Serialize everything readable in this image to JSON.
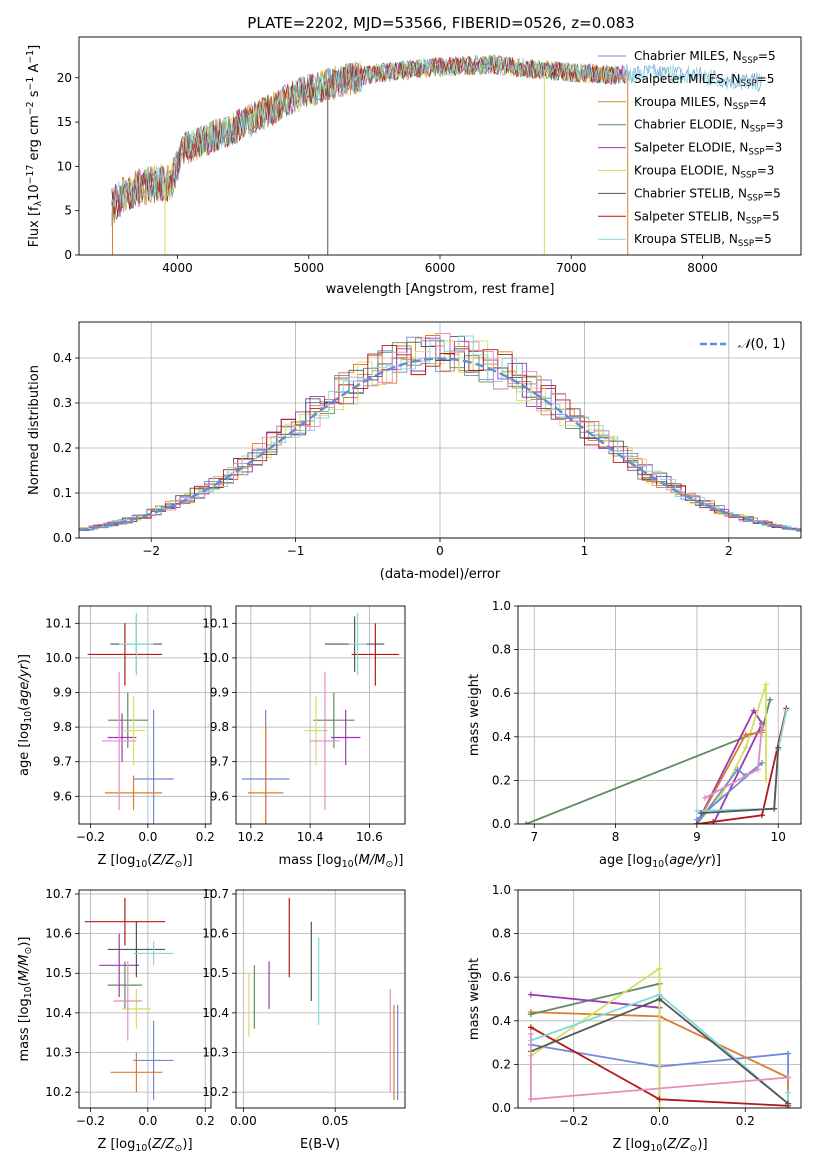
{
  "title": "PLATE=2202, MJD=53566, FIBERID=0526, z=0.083",
  "colors": {
    "chabrier_miles": "#6f8bd8",
    "salpeter_miles": "#e07d2a",
    "kroupa_miles": "#cc8a3a",
    "chabrier_elodie": "#5f8c63",
    "salpeter_elodie": "#9a3ab3",
    "kroupa_elodie": "#d4e060",
    "chabrier_stelib": "#555555",
    "salpeter_stelib": "#b41818",
    "kroupa_stelib": "#7fdada",
    "pink": "#e38fbf",
    "gauss": "#5b8fd8"
  },
  "chart_data": [
    {
      "id": "spectrum",
      "type": "line",
      "xlabel": "wavelength [Angstrom, rest frame]",
      "ylabel": "Flux [f_λ 10^-17 erg cm^-2 s^-1 A^-1]",
      "xlim": [
        3250,
        8750
      ],
      "ylim": [
        0,
        24.6
      ],
      "xticks": [
        4000,
        5000,
        6000,
        7000,
        8000
      ],
      "yticks": [
        0,
        5,
        10,
        15,
        20
      ],
      "legend_position": "right",
      "series": [
        {
          "name": "Chabrier MILES, N_SSP=5",
          "color": "#6f8bd8"
        },
        {
          "name": "Salpeter MILES, N_SSP=5",
          "color": "#e07d2a"
        },
        {
          "name": "Kroupa MILES, N_SSP=4",
          "color": "#cc8a3a"
        },
        {
          "name": "Chabrier ELODIE, N_SSP=3",
          "color": "#5f8c63"
        },
        {
          "name": "Salpeter ELODIE, N_SSP=3",
          "color": "#9a3ab3"
        },
        {
          "name": "Kroupa ELODIE, N_SSP=3",
          "color": "#d4e060"
        },
        {
          "name": "Chabrier STELIB, N_SSP=5",
          "color": "#555555"
        },
        {
          "name": "Salpeter STELIB, N_SSP=5",
          "color": "#b41818"
        },
        {
          "name": "Kroupa STELIB, N_SSP=5",
          "color": "#7fdada"
        }
      ],
      "continuum": {
        "x": [
          3500,
          3600,
          3800,
          3950,
          4050,
          4300,
          4600,
          4900,
          5200,
          5500,
          5800,
          6100,
          6400,
          6700,
          7000,
          7300,
          7500,
          7700,
          8000,
          8200,
          8400
        ],
        "y": [
          5.5,
          7.0,
          8.0,
          8.2,
          12.0,
          13.5,
          15.5,
          18.0,
          19.5,
          20.5,
          21.0,
          21.3,
          21.5,
          21.0,
          20.6,
          20.3,
          20.5,
          20.5,
          20.2,
          19.8,
          19.5
        ]
      }
    },
    {
      "id": "residuals",
      "type": "line",
      "xlabel": "(data-model)/error",
      "ylabel": "Normed distribution",
      "xlim": [
        -2.5,
        2.5
      ],
      "ylim": [
        0,
        0.48
      ],
      "xticks": [
        -2,
        -1,
        0,
        1,
        2
      ],
      "yticks": [
        0.0,
        0.1,
        0.2,
        0.3,
        0.4
      ],
      "grid": true,
      "legend": "𝒩(0,1)",
      "legend_position": "top-right"
    },
    {
      "id": "age_vs_Z",
      "type": "scatter",
      "xlabel": "Z [log10(Z/Z⊙)]",
      "ylabel": "age [log10(age/yr)]",
      "xlim": [
        -0.24,
        0.22
      ],
      "ylim": [
        9.52,
        10.15
      ],
      "xticks": [
        -0.2,
        0.0,
        0.2
      ],
      "yticks": [
        9.6,
        9.7,
        9.8,
        9.9,
        10.0,
        10.1
      ],
      "grid": true
    },
    {
      "id": "age_vs_mass",
      "type": "scatter",
      "xlabel": "mass [log10(M/M⊙)]",
      "ylim": [
        9.52,
        10.15
      ],
      "xlim": [
        10.15,
        10.72
      ],
      "xticks": [
        10.2,
        10.4,
        10.6
      ],
      "yticks": [
        9.6,
        9.7,
        9.8,
        9.9,
        10.0,
        10.1
      ],
      "grid": true
    },
    {
      "id": "weight_vs_age",
      "type": "line",
      "xlabel": "age [log10(age/yr)]",
      "ylabel": "mass weight",
      "xlim": [
        6.8,
        10.28
      ],
      "ylim": [
        0,
        1
      ],
      "xticks": [
        7,
        8,
        9,
        10
      ],
      "yticks": [
        0.0,
        0.2,
        0.4,
        0.6,
        0.8,
        1.0
      ],
      "grid": true
    },
    {
      "id": "mass_vs_Z",
      "type": "scatter",
      "xlabel": "Z [log10(Z/Z⊙)]",
      "ylabel": "mass [log10(M/M⊙)]",
      "xlim": [
        -0.24,
        0.22
      ],
      "ylim": [
        10.16,
        10.71
      ],
      "xticks": [
        -0.2,
        0.0,
        0.2
      ],
      "yticks": [
        10.2,
        10.3,
        10.4,
        10.5,
        10.6,
        10.7
      ],
      "grid": true
    },
    {
      "id": "mass_vs_ebv",
      "type": "scatter",
      "xlabel": "E(B-V)",
      "xlim": [
        -0.004,
        0.088
      ],
      "ylim": [
        10.16,
        10.71
      ],
      "xticks": [
        0.0,
        0.05
      ],
      "yticks": [
        10.2,
        10.3,
        10.4,
        10.5,
        10.6,
        10.7
      ],
      "grid": true
    },
    {
      "id": "weight_vs_Z",
      "type": "line",
      "xlabel": "Z [log10(Z/Z⊙)]",
      "ylabel": "mass weight",
      "xlim": [
        -0.33,
        0.33
      ],
      "ylim": [
        0,
        1
      ],
      "xticks": [
        -0.2,
        0.0,
        0.2
      ],
      "yticks": [
        0.0,
        0.2,
        0.4,
        0.6,
        0.8,
        1.0
      ],
      "grid": true
    }
  ]
}
